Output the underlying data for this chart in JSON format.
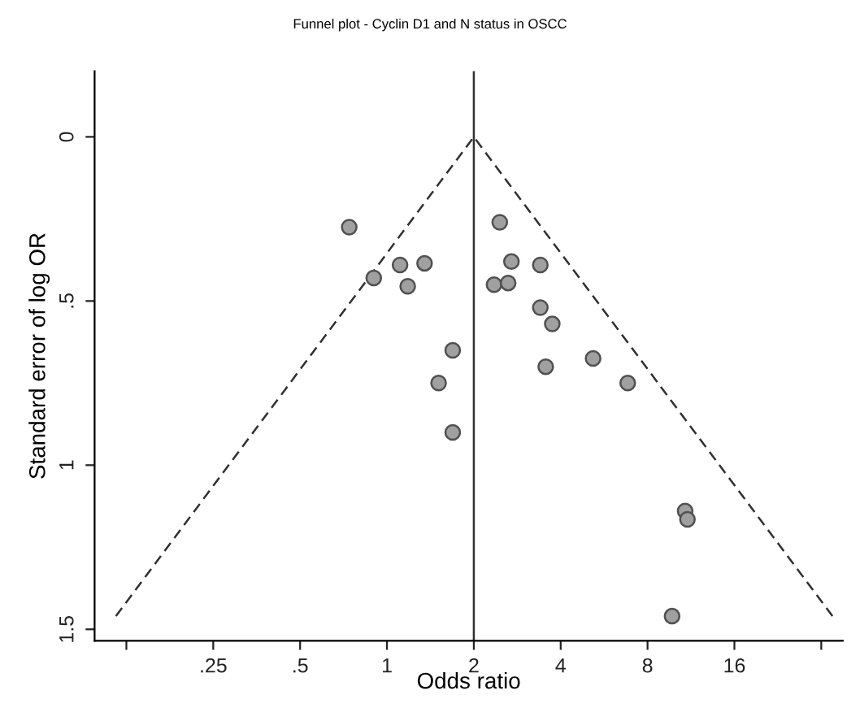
{
  "chart_data": {
    "type": "scatter",
    "title": "Funnel plot - Cyclin D1 and N status in OSCC",
    "xlabel": "Odds ratio",
    "ylabel": "Standard error of log OR",
    "log": "x",
    "grid": false,
    "legend": false,
    "marker": "circle",
    "xlim": [
      0.097,
      38
    ],
    "ylim": [
      1.535,
      -0.2
    ],
    "xticks": [
      {
        "value": 0.125,
        "label": null
      },
      {
        "value": 0.25,
        "label": ".25"
      },
      {
        "value": 0.5,
        "label": ".5"
      },
      1,
      2,
      4,
      8,
      16,
      {
        "value": 32,
        "label": null
      }
    ],
    "yticks": [
      0,
      {
        "value": 0.5,
        "label": ".5"
      },
      1,
      1.5
    ],
    "ref_lines": [
      {
        "axis": "x",
        "value": 2,
        "color": "#303030",
        "line_style": "solid"
      }
    ],
    "series": [
      {
        "type": "line",
        "color": "#303030",
        "line_style": "dashed",
        "marker": "none",
        "x": [
          0.115,
          2,
          35
        ],
        "values": [
          1.46,
          0,
          1.46
        ]
      },
      {
        "color": "#a0a0a0",
        "x": [
          0.74,
          2.46,
          1.11,
          1.35,
          0.9,
          1.18,
          2.7,
          3.4,
          2.35,
          2.63,
          3.4,
          3.74,
          1.69,
          3.55,
          5.18,
          1.51,
          6.83,
          1.69,
          10.8,
          11.0,
          9.73
        ],
        "values": [
          0.275,
          0.26,
          0.39,
          0.385,
          0.43,
          0.455,
          0.38,
          0.39,
          0.45,
          0.445,
          0.52,
          0.57,
          0.65,
          0.7,
          0.675,
          0.75,
          0.75,
          0.9,
          1.14,
          1.165,
          1.46
        ]
      }
    ]
  }
}
